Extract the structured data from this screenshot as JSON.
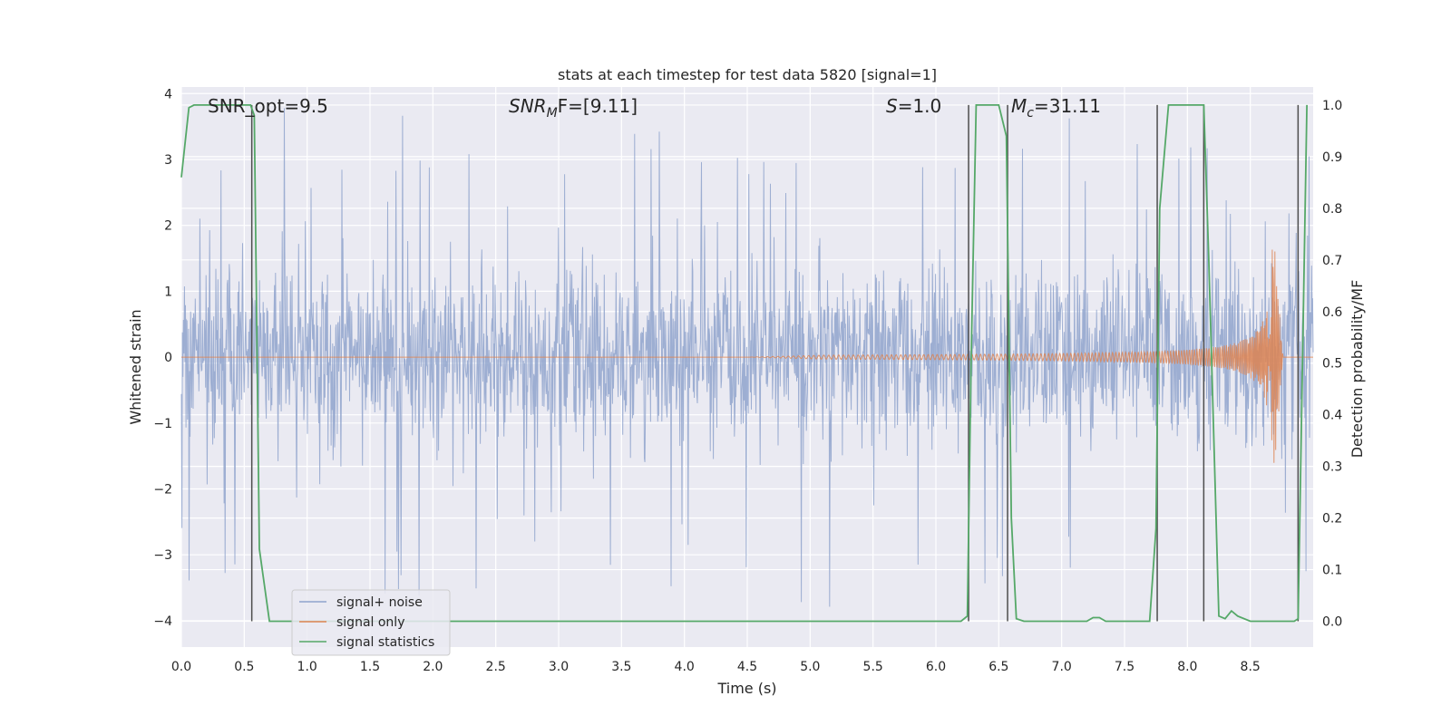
{
  "chart_data": {
    "type": "line",
    "title": "stats at each timestep for test data 5820 [signal=1]",
    "xlabel": "Time (s)",
    "ylabel_left": "Whitened strain",
    "ylabel_right": "Detection probability/MF",
    "xlim": [
      0,
      9.0
    ],
    "ylim_left": [
      -4.4,
      4.1
    ],
    "ylim_right": [
      -0.05,
      1.035
    ],
    "x_ticks": [
      0.0,
      0.5,
      1.0,
      1.5,
      2.0,
      2.5,
      3.0,
      3.5,
      4.0,
      4.5,
      5.0,
      5.5,
      6.0,
      6.5,
      7.0,
      7.5,
      8.0,
      8.5
    ],
    "x_tick_labels": [
      "0.0",
      "0.5",
      "1.0",
      "1.5",
      "2.0",
      "2.5",
      "3.0",
      "3.5",
      "4.0",
      "4.5",
      "5.0",
      "5.5",
      "6.0",
      "6.5",
      "7.0",
      "7.5",
      "8.0",
      "8.5"
    ],
    "y_left_ticks": [
      4,
      3,
      2,
      1,
      0,
      -1,
      -2,
      -3,
      -4
    ],
    "y_left_tick_labels": [
      "4",
      "3",
      "2",
      "1",
      "0",
      "−1",
      "−2",
      "−3",
      "−4"
    ],
    "y_right_ticks": [
      1.0,
      0.9,
      0.8,
      0.7,
      0.6,
      0.5,
      0.4,
      0.3,
      0.2,
      0.1,
      0.0
    ],
    "y_right_tick_labels": [
      "1.0",
      "0.9",
      "0.8",
      "0.7",
      "0.6",
      "0.5",
      "0.4",
      "0.3",
      "0.2",
      "0.1",
      "0.0"
    ],
    "grid": true,
    "legend_position": "lower-left",
    "annotations": {
      "snr_opt": "SNR_opt=9.5",
      "snr_mf_sym": "SNR",
      "snr_mf_sub": "M",
      "snr_mf_rest": "F=[9.11]",
      "s_sym": "S",
      "s_rest": "=1.0",
      "mc_sym": "M",
      "mc_sub": "c",
      "mc_rest": "=31.11"
    },
    "series": [
      {
        "name": "signal+ noise",
        "color": "#8fa3cc",
        "envelope": {
          "t_start": 0.0,
          "t_end": 9.0,
          "typical_amplitude": 1.2,
          "max_peak": 3.8,
          "min_trough": -3.9
        }
      },
      {
        "name": "signal only",
        "color": "#dd8452",
        "chirp": {
          "t_start": 4.5,
          "t_merger": 8.68,
          "t_end": 9.0,
          "peak_amplitude": 2.0
        }
      },
      {
        "name": "signal statistics",
        "color": "#55a868",
        "x": [
          0.0,
          0.06,
          0.1,
          0.2,
          0.3,
          0.4,
          0.5,
          0.55,
          0.58,
          0.62,
          0.7,
          1.0,
          2.0,
          3.0,
          4.0,
          5.0,
          6.0,
          6.2,
          6.25,
          6.28,
          6.32,
          6.5,
          6.56,
          6.6,
          6.64,
          6.7,
          7.0,
          7.2,
          7.25,
          7.3,
          7.35,
          7.4,
          7.6,
          7.7,
          7.75,
          7.78,
          7.85,
          8.0,
          8.13,
          8.17,
          8.25,
          8.3,
          8.35,
          8.4,
          8.5,
          8.7,
          8.85,
          8.88,
          8.95
        ],
        "y": [
          0.86,
          0.995,
          1.0,
          1.0,
          1.0,
          1.0,
          1.0,
          1.0,
          0.98,
          0.14,
          0.0,
          0.0,
          0.0,
          0.0,
          0.0,
          0.0,
          0.0,
          0.0,
          0.01,
          0.5,
          1.0,
          1.0,
          0.94,
          0.2,
          0.005,
          0.0,
          0.0,
          0.0,
          0.007,
          0.007,
          0.0,
          0.0,
          0.0,
          0.0,
          0.18,
          0.8,
          1.0,
          1.0,
          1.0,
          0.7,
          0.01,
          0.005,
          0.02,
          0.01,
          0.0,
          0.0,
          0.0,
          0.005,
          1.0
        ]
      }
    ],
    "vertical_markers": {
      "color": "#4d4d4d",
      "x": [
        0.56,
        6.26,
        6.57,
        7.76,
        8.13,
        8.88
      ],
      "y_bottom": 0.0,
      "y_top": 1.0
    }
  }
}
